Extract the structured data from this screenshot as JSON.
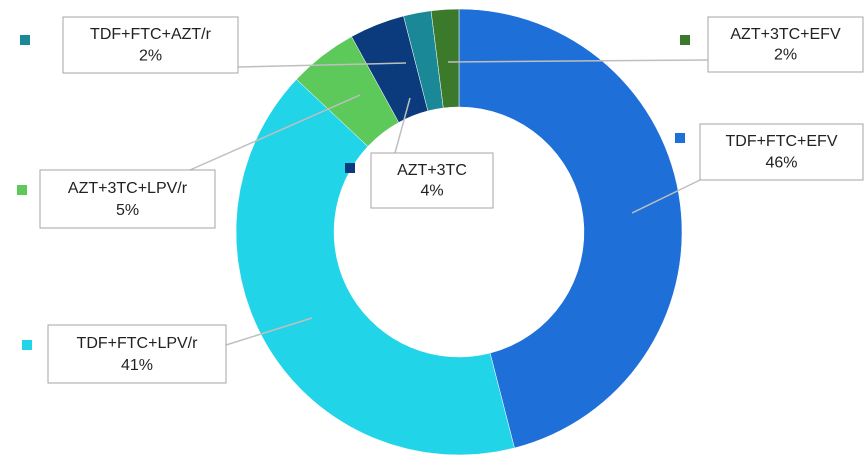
{
  "chart_data": {
    "type": "donut",
    "categories": [
      "TDF+FTC+EFV",
      "TDF+FTC+LPV/r",
      "AZT+3TC+LPV/r",
      "AZT+3TC",
      "TDF+FTC+AZT/r",
      "AZT+3TC+EFV"
    ],
    "values": [
      46,
      41,
      5,
      4,
      2,
      2
    ],
    "value_labels": [
      "46%",
      "41%",
      "5%",
      "4%",
      "2%",
      "2%"
    ],
    "colors": [
      "#1e6fd8",
      "#22d4e8",
      "#5dc95b",
      "#0b3b7c",
      "#1a8896",
      "#3a7a2a"
    ]
  }
}
